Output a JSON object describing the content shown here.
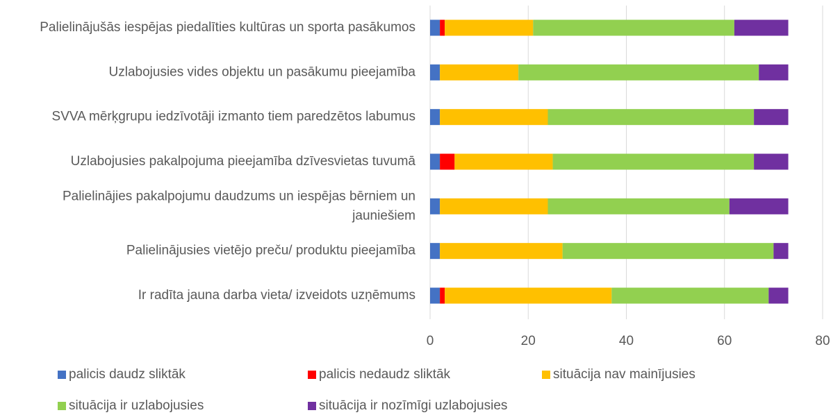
{
  "chart_data": {
    "type": "stacked-bar-horizontal",
    "categories": [
      "Palielinājušās iespējas piedalīties kultūras un sporta pasākumos",
      "Uzlabojusies vides objektu un pasākumu pieejamība",
      "SVVA mērķgrupu iedzīvotāji izmanto tiem paredzētos labumus",
      "Uzlabojusies pakalpojuma pieejamība dzīvesvietas tuvumā",
      "Palielinājies pakalpojumu daudzums un iespējas bērniem un jauniešiem",
      "Palielinājusies vietējo preču/ produktu pieejamība",
      "Ir radīta jauna darba vieta/ izveidots uzņēmums"
    ],
    "series": [
      {
        "name": "palicis daudz sliktāk",
        "color": "#4472c4",
        "values": [
          2,
          2,
          2,
          2,
          2,
          2,
          2
        ]
      },
      {
        "name": "palicis nedaudz sliktāk",
        "color": "#ff0000",
        "values": [
          1,
          0,
          0,
          3,
          0,
          0,
          1
        ]
      },
      {
        "name": "situācija nav mainījusies",
        "color": "#ffc000",
        "values": [
          18,
          16,
          22,
          20,
          22,
          25,
          34
        ]
      },
      {
        "name": "situācija ir uzlabojusies",
        "color": "#92d050",
        "values": [
          41,
          49,
          42,
          41,
          37,
          43,
          32
        ]
      },
      {
        "name": "situācija ir nozīmīgi uzlabojusies",
        "color": "#7030a0",
        "values": [
          11,
          6,
          7,
          7,
          12,
          3,
          4
        ]
      }
    ],
    "xlim": [
      0,
      80
    ],
    "xticks": [
      0,
      20,
      40,
      60,
      80
    ],
    "grid": true,
    "legend": "bottom"
  }
}
